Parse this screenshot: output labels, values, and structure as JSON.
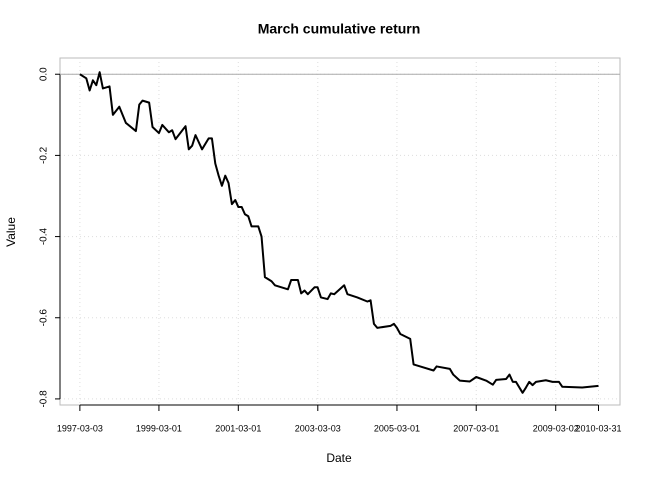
{
  "chart_data": {
    "type": "line",
    "title": "March cumulative return",
    "x_label": "Date",
    "y_label": "Value",
    "grid": true,
    "reference_line": 0,
    "xlim": [
      "1996-09-01",
      "2010-10-15"
    ],
    "xticks": [
      "1997-03-03",
      "1999-03-01",
      "2001-03-01",
      "2003-03-03",
      "2005-03-01",
      "2007-03-01",
      "2009-03-02",
      "2010-03-31"
    ],
    "ylim": [
      -0.815,
      0.04
    ],
    "yticks": [
      {
        "value": 0,
        "label": "0.0"
      },
      -0.2,
      -0.4,
      -0.6,
      -0.8
    ],
    "x": [
      "1997-03-03",
      "1997-05-01",
      "1997-06-01",
      "1997-07-01",
      "1997-08-01",
      "1997-09-01",
      "1997-10-01",
      "1997-12-01",
      "1998-01-01",
      "1998-03-01",
      "1998-05-01",
      "1998-08-01",
      "1998-09-01",
      "1998-10-01",
      "1998-12-01",
      "1999-01-01",
      "1999-03-01",
      "1999-04-01",
      "1999-06-01",
      "1999-07-01",
      "1999-08-01",
      "1999-11-01",
      "1999-12-01",
      "2000-01-01",
      "2000-02-01",
      "2000-04-01",
      "2000-06-01",
      "2000-07-01",
      "2000-08-01",
      "2000-09-01",
      "2000-10-01",
      "2000-11-01",
      "2000-12-01",
      "2001-01-01",
      "2001-02-01",
      "2001-03-01",
      "2001-04-01",
      "2001-05-01",
      "2001-06-01",
      "2001-07-01",
      "2001-09-01",
      "2001-10-01",
      "2001-11-01",
      "2002-01-01",
      "2002-02-01",
      "2002-06-01",
      "2002-07-01",
      "2002-09-01",
      "2002-10-01",
      "2002-11-01",
      "2002-12-01",
      "2003-02-01",
      "2003-03-01",
      "2003-04-01",
      "2003-06-01",
      "2003-07-01",
      "2003-08-01",
      "2003-11-01",
      "2003-12-01",
      "2004-03-01",
      "2004-06-01",
      "2004-07-01",
      "2004-08-01",
      "2004-09-01",
      "2005-01-01",
      "2005-02-01",
      "2005-03-01",
      "2005-04-01",
      "2005-07-01",
      "2005-08-01",
      "2005-10-01",
      "2006-02-01",
      "2006-03-01",
      "2006-07-01",
      "2006-08-01",
      "2006-10-01",
      "2007-01-01",
      "2007-03-01",
      "2007-06-01",
      "2007-08-01",
      "2007-09-01",
      "2007-12-01",
      "2008-01-01",
      "2008-02-01",
      "2008-03-01",
      "2008-05-01",
      "2008-06-01",
      "2008-07-01",
      "2008-08-01",
      "2008-09-01",
      "2008-12-01",
      "2009-02-01",
      "2009-04-01",
      "2009-05-01",
      "2009-11-01",
      "2010-03-31"
    ],
    "series": [
      {
        "name": "Value",
        "color": "#000000",
        "values": [
          0,
          -0.01,
          -0.04,
          -0.015,
          -0.027,
          0.005,
          -0.035,
          -0.03,
          -0.1,
          -0.08,
          -0.12,
          -0.14,
          -0.075,
          -0.065,
          -0.07,
          -0.13,
          -0.145,
          -0.125,
          -0.143,
          -0.138,
          -0.16,
          -0.128,
          -0.185,
          -0.176,
          -0.15,
          -0.185,
          -0.158,
          -0.158,
          -0.22,
          -0.25,
          -0.275,
          -0.25,
          -0.268,
          -0.32,
          -0.31,
          -0.327,
          -0.327,
          -0.345,
          -0.35,
          -0.375,
          -0.375,
          -0.4,
          -0.5,
          -0.51,
          -0.52,
          -0.53,
          -0.507,
          -0.507,
          -0.54,
          -0.533,
          -0.542,
          -0.525,
          -0.525,
          -0.55,
          -0.554,
          -0.54,
          -0.542,
          -0.52,
          -0.542,
          -0.55,
          -0.56,
          -0.557,
          -0.615,
          -0.625,
          -0.62,
          -0.615,
          -0.625,
          -0.64,
          -0.652,
          -0.715,
          -0.72,
          -0.73,
          -0.72,
          -0.726,
          -0.74,
          -0.755,
          -0.757,
          -0.746,
          -0.755,
          -0.765,
          -0.753,
          -0.751,
          -0.74,
          -0.758,
          -0.758,
          -0.785,
          -0.772,
          -0.758,
          -0.766,
          -0.758,
          -0.754,
          -0.758,
          -0.758,
          -0.77,
          -0.772,
          -0.768
        ]
      }
    ]
  }
}
